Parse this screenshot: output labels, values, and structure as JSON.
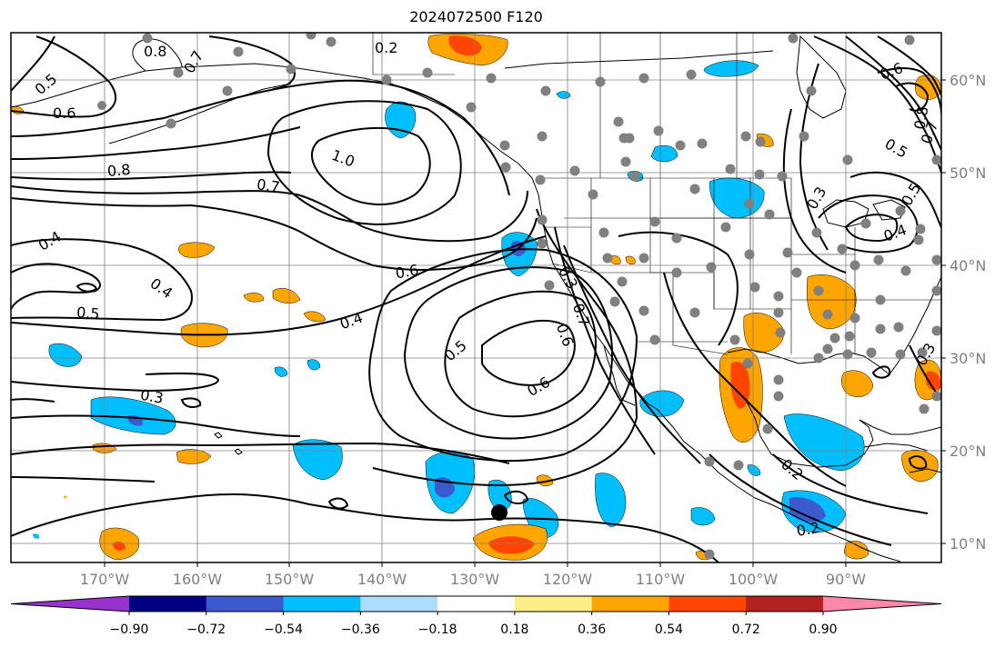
{
  "title": "2024072500 F120",
  "map": {
    "lon_ticks": [
      "170°W",
      "160°W",
      "150°W",
      "140°W",
      "130°W",
      "120°W",
      "110°W",
      "100°W",
      "90°W"
    ],
    "lat_ticks": [
      "60°N",
      "50°N",
      "40°N",
      "30°N",
      "20°N",
      "10°N"
    ],
    "contour_labels": [
      "0.2",
      "0.8",
      "0.7",
      "0.5",
      "0.6",
      "0.8",
      "1.0",
      "0.7",
      "0.6",
      "0.4",
      "0.4",
      "0.5",
      "0.4",
      "0.3",
      "0.5",
      "0.6",
      "0.6",
      "0.3",
      "0.7",
      "0.2",
      "0.2",
      "0.6",
      "0.8",
      "0.7",
      "0.5",
      "0.3",
      "0.5",
      "0.4",
      "0.3"
    ],
    "colors": {
      "deep_purple": "#9932cc",
      "navy": "#000080",
      "royal_blue": "#3c5acd",
      "deep_sky_blue": "#00bfff",
      "light_blue": "#aaddff",
      "white": "#ffffff",
      "khaki": "#ffee88",
      "orange": "#ffa500",
      "orange_red": "#ff4500",
      "firebrick": "#b22222",
      "pink": "#ff88aa"
    }
  },
  "colorbar": {
    "labels": [
      "−0.90",
      "−0.72",
      "−0.54",
      "−0.36",
      "−0.18",
      "0.18",
      "0.36",
      "0.54",
      "0.72",
      "0.90"
    ],
    "colors": [
      "#9932cc",
      "#000080",
      "#3c5acd",
      "#00bfff",
      "#aaddff",
      "#ffffff",
      "#ffee88",
      "#ffa500",
      "#ff4500",
      "#b22222",
      "#ff88aa"
    ]
  }
}
